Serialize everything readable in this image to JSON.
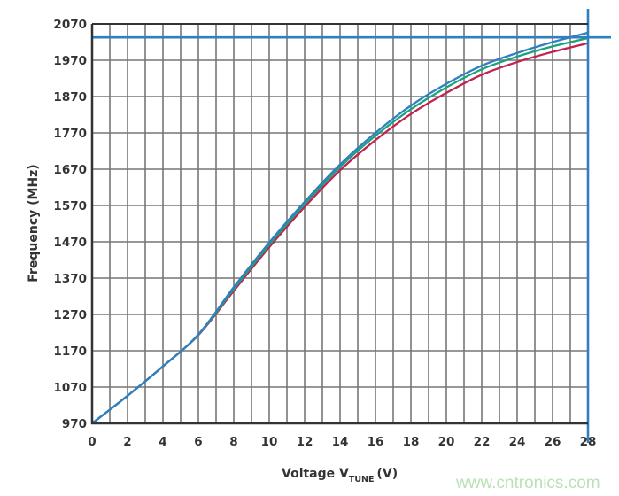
{
  "chart_data": {
    "type": "line",
    "title": "",
    "xlabel": "Voltage V",
    "xlabel_subscript": "TUNE",
    "xlabel_unit": "(V)",
    "ylabel": "Frequency (MHz)",
    "xlim": [
      0,
      28
    ],
    "ylim": [
      970,
      2070
    ],
    "xticks": [
      0,
      2,
      4,
      6,
      8,
      10,
      12,
      14,
      16,
      18,
      20,
      22,
      24,
      26,
      28
    ],
    "yticks": [
      970,
      1070,
      1170,
      1270,
      1370,
      1470,
      1570,
      1670,
      1770,
      1870,
      1970,
      2070
    ],
    "grid": true,
    "grid_x_step": 1,
    "grid_y_step": 100,
    "x": [
      0,
      2,
      4,
      6,
      8,
      10,
      12,
      14,
      16,
      18,
      20,
      22,
      24,
      26,
      28
    ],
    "series": [
      {
        "color": "#c0234f",
        "values": [
          970,
          1046,
          1127,
          1213,
          1335,
          1455,
          1566,
          1667,
          1750,
          1822,
          1880,
          1930,
          1965,
          1993,
          2017
        ]
      },
      {
        "color": "#1aa37a",
        "values": [
          970,
          1046,
          1127,
          1214,
          1340,
          1462,
          1574,
          1676,
          1762,
          1835,
          1895,
          1945,
          1980,
          2008,
          2031
        ]
      },
      {
        "color": "#2f7fc1",
        "values": [
          970,
          1046,
          1127,
          1215,
          1345,
          1468,
          1580,
          1683,
          1770,
          1845,
          1905,
          1955,
          1990,
          2020,
          2046
        ]
      }
    ],
    "reference_lines": {
      "color": "#2f7fc1",
      "horizontal_y": 2033,
      "vertical_x": 28
    }
  },
  "watermark": "www.cntronics.com"
}
